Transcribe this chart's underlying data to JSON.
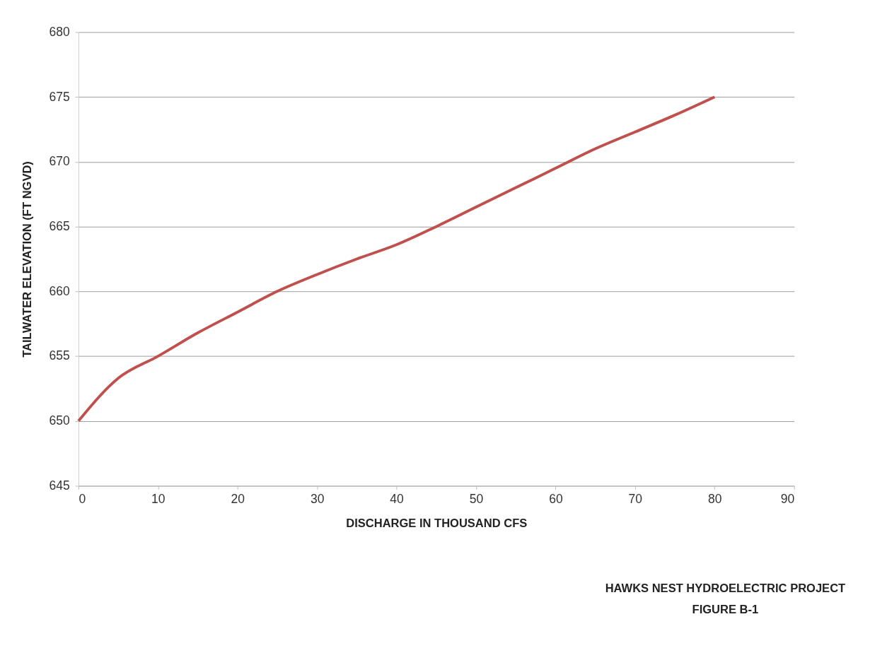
{
  "chart_data": {
    "type": "line",
    "xlabel": "DISCHARGE IN THOUSAND CFS",
    "ylabel": "TAILWATER ELEVATION (FT NGVD)",
    "x": [
      0,
      5,
      10,
      15,
      20,
      25,
      30,
      35,
      40,
      45,
      50,
      55,
      60,
      65,
      70,
      75,
      80
    ],
    "series": [
      {
        "color": "#c0504d",
        "values": [
          650,
          653.3,
          655,
          656.8,
          658.4,
          660,
          661.3,
          662.5,
          663.6,
          665,
          666.5,
          668,
          669.5,
          671,
          672.3,
          673.6,
          675
        ]
      }
    ],
    "xlim": [
      0,
      90
    ],
    "xticks": [
      0,
      10,
      20,
      30,
      40,
      50,
      60,
      70,
      80,
      90
    ],
    "ylim": [
      645,
      680
    ],
    "yticks": [
      645,
      650,
      655,
      660,
      665,
      670,
      675,
      680
    ],
    "grid": "y",
    "marker": "none",
    "line_style": "solid",
    "legend": false,
    "annotations": [
      "HAWKS NEST HYDROELECTRIC PROJECT",
      "FIGURE  B-1"
    ]
  }
}
